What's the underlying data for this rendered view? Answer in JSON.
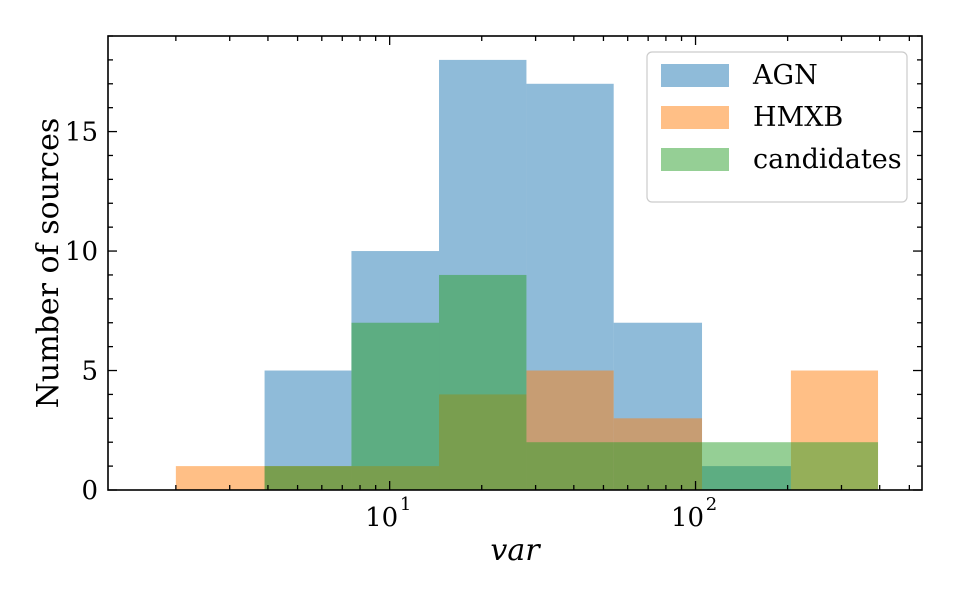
{
  "chart_data": {
    "type": "bar",
    "histogram": true,
    "xscale": "log",
    "xlim": [
      1.2,
      550
    ],
    "ylim": [
      0,
      19
    ],
    "xlabel": "var",
    "ylabel": "Number of sources",
    "y_ticks": [
      0,
      5,
      10,
      15
    ],
    "x_ticks": [
      {
        "value": 10,
        "base": "10",
        "exp": "1"
      },
      {
        "value": 100,
        "base": "10",
        "exp": "2"
      }
    ],
    "grid": false,
    "legend_position": "top-right",
    "bin_edges": [
      2,
      3.9,
      7.5,
      14.5,
      28,
      54,
      105,
      205,
      395
    ],
    "series": [
      {
        "name": "AGN",
        "color": "#1f77b4",
        "values": [
          0,
          5,
          10,
          18,
          17,
          7,
          1,
          0
        ]
      },
      {
        "name": "HMXB",
        "color": "#ff7f0e",
        "values": [
          1,
          1,
          1,
          4,
          5,
          3,
          0,
          5
        ]
      },
      {
        "name": "candidates",
        "color": "#2ca02c",
        "values": [
          0,
          1,
          7,
          9,
          2,
          2,
          2,
          2
        ]
      }
    ]
  }
}
